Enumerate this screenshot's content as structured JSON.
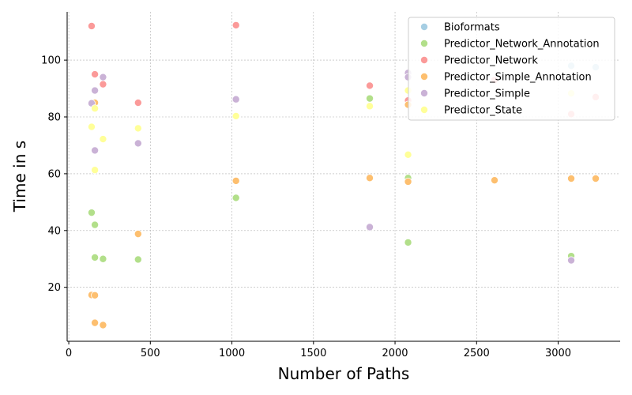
{
  "chart_data": {
    "type": "scatter",
    "xlabel": "Number of Paths",
    "ylabel": "Time in s",
    "xlim": [
      -10,
      3380
    ],
    "ylim": [
      1,
      117
    ],
    "xticks": [
      0,
      500,
      1000,
      1500,
      2000,
      2500,
      3000
    ],
    "yticks": [
      20,
      40,
      60,
      80,
      100
    ],
    "grid": true,
    "legend_position": "top-right",
    "series": [
      {
        "name": "Bioformats",
        "color": "#a6cee3",
        "points": [
          [
            3230,
            97.5
          ],
          [
            3080,
            98
          ]
        ]
      },
      {
        "name": "Predictor_Network_Annotation",
        "color": "#b2df8a",
        "points": [
          [
            140,
            46.3
          ],
          [
            160,
            42.0
          ],
          [
            160,
            30.5
          ],
          [
            210,
            30.0
          ],
          [
            425,
            29.8
          ],
          [
            1025,
            51.5
          ],
          [
            1845,
            86.5
          ],
          [
            2080,
            58.5
          ],
          [
            2080,
            35.8
          ],
          [
            3080,
            31.0
          ]
        ]
      },
      {
        "name": "Predictor_Network",
        "color": "#fb9a99",
        "points": [
          [
            140,
            112
          ],
          [
            160,
            95.0
          ],
          [
            210,
            91.5
          ],
          [
            425,
            85.0
          ],
          [
            1025,
            112.3
          ],
          [
            1845,
            91.0
          ],
          [
            2080,
            85.8
          ],
          [
            2610,
            93.0
          ],
          [
            3080,
            81.0
          ],
          [
            3230,
            87.0
          ]
        ]
      },
      {
        "name": "Predictor_Simple_Annotation",
        "color": "#fdbf6f",
        "points": [
          [
            140,
            17.3
          ],
          [
            160,
            17.2
          ],
          [
            160,
            85.0
          ],
          [
            160,
            7.5
          ],
          [
            210,
            6.7
          ],
          [
            425,
            38.8
          ],
          [
            1025,
            57.5
          ],
          [
            1845,
            58.5
          ],
          [
            2080,
            57.2
          ],
          [
            2080,
            84.3
          ],
          [
            2610,
            57.7
          ],
          [
            3080,
            58.3
          ],
          [
            3230,
            58.3
          ]
        ]
      },
      {
        "name": "Predictor_Simple",
        "color": "#cab2d6",
        "points": [
          [
            140,
            84.8
          ],
          [
            160,
            89.3
          ],
          [
            160,
            68.2
          ],
          [
            210,
            94.0
          ],
          [
            425,
            70.7
          ],
          [
            1025,
            86.2
          ],
          [
            1845,
            41.2
          ],
          [
            2080,
            95.5
          ],
          [
            2080,
            94.0
          ],
          [
            3080,
            29.5
          ]
        ]
      },
      {
        "name": "Predictor_State",
        "color": "#ffff99",
        "points": [
          [
            140,
            76.5
          ],
          [
            160,
            83.0
          ],
          [
            160,
            61.3
          ],
          [
            210,
            72.2
          ],
          [
            425,
            76.0
          ],
          [
            1025,
            80.3
          ],
          [
            1845,
            83.8
          ],
          [
            2080,
            89.3
          ],
          [
            2080,
            66.7
          ],
          [
            3080,
            88.3
          ]
        ]
      }
    ]
  }
}
